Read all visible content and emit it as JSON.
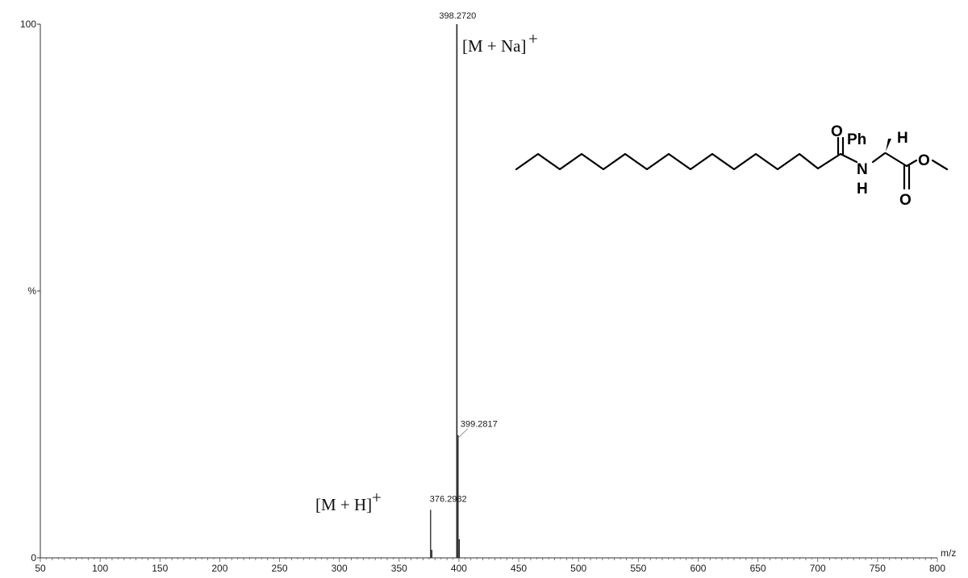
{
  "chart_data": {
    "type": "line",
    "subtype": "mass-spectrum",
    "xlabel": "m/z",
    "ylabel": "%",
    "xlim": [
      50,
      800
    ],
    "ylim": [
      0,
      100
    ],
    "x_ticks": [
      50,
      100,
      150,
      200,
      250,
      300,
      350,
      400,
      450,
      500,
      550,
      600,
      650,
      700,
      750,
      800
    ],
    "y_ticks": [
      {
        "value": 0,
        "label": "0"
      },
      {
        "value": 50,
        "label": "%"
      },
      {
        "value": 100,
        "label": "100"
      }
    ],
    "grid": false,
    "peaks": [
      {
        "mz": 376.2982,
        "intensity": 9,
        "label": "376.2982"
      },
      {
        "mz": 377.3,
        "intensity": 1.5,
        "label": ""
      },
      {
        "mz": 398.272,
        "intensity": 100,
        "label": "398.2720"
      },
      {
        "mz": 399.2817,
        "intensity": 23,
        "label": "399.2817"
      },
      {
        "mz": 400.28,
        "intensity": 3.5,
        "label": ""
      }
    ],
    "annotations": [
      {
        "text": "[M + Na]",
        "superscript": "+",
        "mz": 398.272
      },
      {
        "text": "[M + H]",
        "superscript": "+",
        "mz": 376.2982
      }
    ]
  },
  "structure": {
    "atoms": {
      "carbonyl_o": "O",
      "nh_n": "N",
      "nh_h": "H",
      "phenyl": "Ph",
      "alpha_h": "H",
      "ester_o": "O",
      "ester_carbonyl_o": "O"
    }
  }
}
